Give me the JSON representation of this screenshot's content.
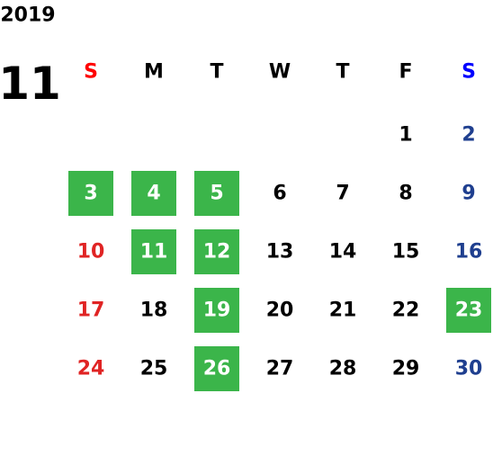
{
  "year": "2019",
  "month": "11",
  "weekdays": [
    "S",
    "M",
    "T",
    "W",
    "T",
    "F",
    "S"
  ],
  "weeks": [
    [
      null,
      null,
      null,
      null,
      null,
      1,
      2
    ],
    [
      3,
      4,
      5,
      6,
      7,
      8,
      9
    ],
    [
      10,
      11,
      12,
      13,
      14,
      15,
      16
    ],
    [
      17,
      18,
      19,
      20,
      21,
      22,
      23
    ],
    [
      24,
      25,
      26,
      27,
      28,
      29,
      30
    ]
  ],
  "highlighted": [
    3,
    4,
    5,
    11,
    12,
    19,
    23,
    26
  ],
  "colors": {
    "sunday_header": "#ff0000",
    "saturday_header": "#0000ff",
    "sunday": "#e02424",
    "saturday": "#1f3f8f",
    "weekday": "#000000",
    "highlight": "#3bb54a",
    "highlight_text": "#ffffff"
  }
}
